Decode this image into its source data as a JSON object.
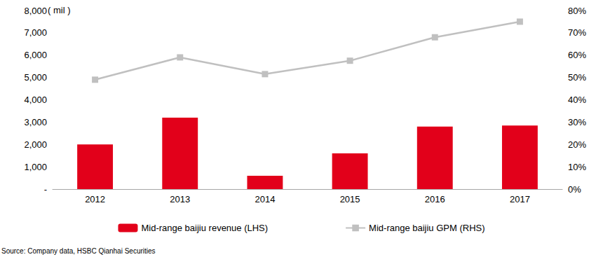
{
  "chart_data": {
    "type": "bar",
    "ylabel": "( mil )",
    "annotations": [
      "Source: Company data, HSBC Qianhai Securities"
    ],
    "categories": [
      "2012",
      "2013",
      "2014",
      "2015",
      "2016",
      "2017"
    ],
    "series": [
      {
        "name": "Mid-range baijiu revenue (LHS)",
        "type": "bar",
        "color": "#e2001a",
        "values": [
          2000,
          3200,
          600,
          1600,
          2800,
          2850
        ]
      },
      {
        "name": "Mid-range baijiu GPM (RHS)",
        "type": "line",
        "axis": "y2",
        "color": "#c0c0c0",
        "marker": "square",
        "line_style": "solid",
        "values": [
          49,
          59,
          51.5,
          57.5,
          68,
          75
        ]
      }
    ],
    "ylim": [
      0,
      8000
    ],
    "yticks": [
      {
        "value": 0,
        "label": "-"
      },
      {
        "value": 1000,
        "label": "1,000"
      },
      {
        "value": 2000,
        "label": "2,000"
      },
      {
        "value": 3000,
        "label": "3,000"
      },
      {
        "value": 4000,
        "label": "4,000"
      },
      {
        "value": 5000,
        "label": "5,000"
      },
      {
        "value": 6000,
        "label": "6,000"
      },
      {
        "value": 7000,
        "label": "7,000"
      },
      {
        "value": 8000,
        "label": "8,000"
      }
    ],
    "y2lim": [
      0,
      80
    ],
    "y2ticks": [
      {
        "value": 0,
        "label": "0%"
      },
      {
        "value": 10,
        "label": "10%"
      },
      {
        "value": 20,
        "label": "20%"
      },
      {
        "value": 30,
        "label": "30%"
      },
      {
        "value": 40,
        "label": "40%"
      },
      {
        "value": 50,
        "label": "50%"
      },
      {
        "value": 60,
        "label": "60%"
      },
      {
        "value": 70,
        "label": "70%"
      },
      {
        "value": 80,
        "label": "80%"
      }
    ],
    "grid": false,
    "legend": "bottom"
  }
}
